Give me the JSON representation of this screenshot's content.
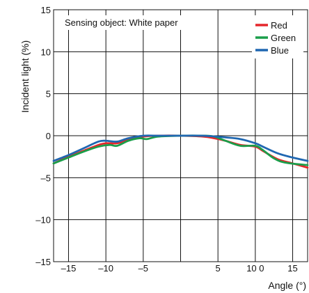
{
  "chart_data": {
    "type": "line",
    "title": "",
    "xlabel": "Angle (°)",
    "ylabel": "Incident light (%)",
    "xlim": [
      -17,
      17
    ],
    "ylim": [
      -15,
      15
    ],
    "grid": true,
    "legend_position": "top-right",
    "annotation": "Sensing object: White paper",
    "x_ticks": [
      {
        "value": -15,
        "label": "–15"
      },
      {
        "value": -10,
        "label": "–10"
      },
      {
        "value": -5,
        "label": "–5"
      },
      {
        "value": 5,
        "label": "5"
      },
      {
        "value": 10,
        "label": "10 0"
      },
      {
        "value": 15,
        "label": "15"
      }
    ],
    "x_gridlines": [
      -15,
      -10,
      -5,
      0,
      5,
      10,
      15
    ],
    "y_ticks": [
      {
        "value": 15,
        "label": "15"
      },
      {
        "value": 10,
        "label": "10"
      },
      {
        "value": 5,
        "label": "5"
      },
      {
        "value": 0,
        "label": "0"
      },
      {
        "value": -5,
        "label": "–5"
      },
      {
        "value": -10,
        "label": "–10"
      },
      {
        "value": -15,
        "label": "–15"
      }
    ],
    "series": [
      {
        "name": "Red",
        "color": "#e5262b",
        "points": [
          [
            -17,
            -3.3
          ],
          [
            -15,
            -2.5
          ],
          [
            -13,
            -1.8
          ],
          [
            -11,
            -1.1
          ],
          [
            -10,
            -0.9
          ],
          [
            -8.5,
            -0.9
          ],
          [
            -7,
            -0.5
          ],
          [
            -5,
            -0.1
          ],
          [
            -3,
            0
          ],
          [
            0,
            0
          ],
          [
            3,
            -0.1
          ],
          [
            4.5,
            -0.3
          ],
          [
            6,
            -0.6
          ],
          [
            8,
            -1.1
          ],
          [
            10,
            -1.3
          ],
          [
            11,
            -1.8
          ],
          [
            13,
            -2.8
          ],
          [
            15,
            -3.3
          ],
          [
            17,
            -3.8
          ]
        ]
      },
      {
        "name": "Green",
        "color": "#1a9e4a",
        "points": [
          [
            -17,
            -3.3
          ],
          [
            -15,
            -2.6
          ],
          [
            -13,
            -1.9
          ],
          [
            -11,
            -1.3
          ],
          [
            -9.5,
            -1.1
          ],
          [
            -8.5,
            -1.2
          ],
          [
            -7,
            -0.6
          ],
          [
            -5.5,
            -0.3
          ],
          [
            -4.5,
            -0.4
          ],
          [
            -3,
            -0.1
          ],
          [
            0,
            0
          ],
          [
            3,
            0
          ],
          [
            4.5,
            -0.1
          ],
          [
            6,
            -0.6
          ],
          [
            8,
            -1.2
          ],
          [
            10,
            -1.2
          ],
          [
            11,
            -1.7
          ],
          [
            12.5,
            -2.7
          ],
          [
            14,
            -3.2
          ],
          [
            17,
            -3.5
          ]
        ]
      },
      {
        "name": "Blue",
        "color": "#1f67b1",
        "points": [
          [
            -17,
            -3.0
          ],
          [
            -15,
            -2.3
          ],
          [
            -13,
            -1.5
          ],
          [
            -11,
            -0.7
          ],
          [
            -10,
            -0.6
          ],
          [
            -8.5,
            -0.7
          ],
          [
            -7,
            -0.3
          ],
          [
            -5,
            0
          ],
          [
            -3,
            0
          ],
          [
            0,
            0
          ],
          [
            3,
            0
          ],
          [
            6,
            -0.2
          ],
          [
            8,
            -0.4
          ],
          [
            10,
            -0.9
          ],
          [
            11,
            -1.3
          ],
          [
            13,
            -2.1
          ],
          [
            15,
            -2.6
          ],
          [
            17,
            -3.0
          ]
        ]
      }
    ]
  }
}
